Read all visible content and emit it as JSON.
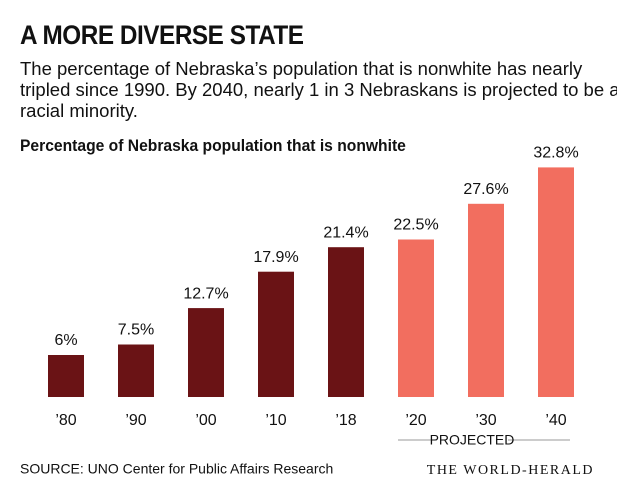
{
  "chart_data": {
    "type": "bar",
    "title": "A MORE DIVERSE STATE",
    "subtitle": "The percentage of Nebraska’s population that is nonwhite has nearly tripled since 1990. By 2040, nearly 1 in 3 Nebraskans is projected to be a racial minority.",
    "chart_title": "Percentage of Nebraska population that is nonwhite",
    "categories": [
      "’80",
      "’90",
      "’00",
      "’10",
      "’18",
      "’20",
      "’30",
      "’40"
    ],
    "values": [
      6,
      7.5,
      12.7,
      17.9,
      21.4,
      22.5,
      27.6,
      32.8
    ],
    "value_labels": [
      "6%",
      "7.5%",
      "12.7%",
      "17.9%",
      "21.4%",
      "22.5%",
      "27.6%",
      "32.8%"
    ],
    "colors": [
      "#6a1315",
      "#6a1315",
      "#6a1315",
      "#6a1315",
      "#6a1315",
      "#f26e5f",
      "#f26e5f",
      "#f26e5f"
    ],
    "annotation": "PROJECTED",
    "source": "SOURCE: UNO Center for Public Affairs Research",
    "credit": "THE WORLD-HERALD"
  }
}
